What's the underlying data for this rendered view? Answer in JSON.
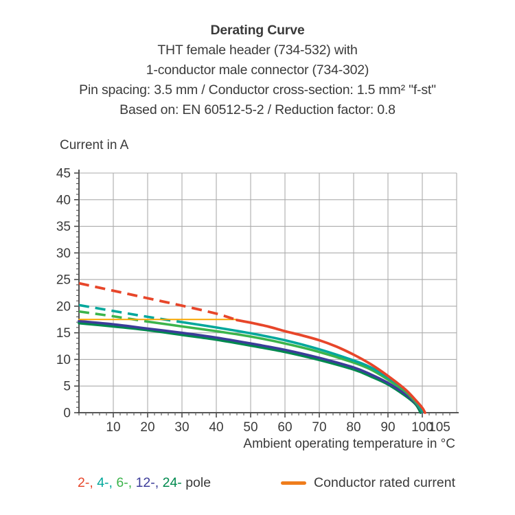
{
  "title_block": {
    "line1": "Derating Curve",
    "line2": "THT female header (734-532) with",
    "line3": "1-conductor male connector (734-302)",
    "line4": "Pin spacing: 3.5 mm / Conductor cross-section: 1.5 mm² \"f-st\"",
    "line5": "Based on: EN 60512-5-2 / Reduction factor: 0.8"
  },
  "chart_data": {
    "type": "line",
    "title": "Derating Curve",
    "ylabel": "Current in A",
    "xlabel": "Ambient operating temperature in °C",
    "xlim": [
      0,
      110
    ],
    "ylim": [
      0,
      45
    ],
    "x_major_ticks": [
      10,
      20,
      30,
      40,
      50,
      60,
      70,
      80,
      90,
      100,
      105
    ],
    "y_major_ticks": [
      0,
      5,
      10,
      15,
      20,
      25,
      30,
      35,
      40,
      45
    ],
    "x_minor_step": 2,
    "y_minor_step": 1,
    "grid": true,
    "grid_x_step": 10,
    "grid_y_step": 5,
    "colors": {
      "grid": "#ababab",
      "axis": "#3f3f3f",
      "text": "#3a3a3a"
    },
    "series": [
      {
        "name": "24-pole",
        "color": "#00894E",
        "style": "solid",
        "width": 3.6,
        "points": [
          [
            0,
            16.8
          ],
          [
            10,
            16.2
          ],
          [
            20,
            15.5
          ],
          [
            30,
            14.6
          ],
          [
            40,
            13.7
          ],
          [
            50,
            12.6
          ],
          [
            60,
            11.4
          ],
          [
            70,
            9.9
          ],
          [
            80,
            8.1
          ],
          [
            85,
            6.8
          ],
          [
            90,
            5.3
          ],
          [
            95,
            3.2
          ],
          [
            98,
            1.6
          ],
          [
            99.5,
            0
          ]
        ]
      },
      {
        "name": "12-pole",
        "color": "#3C3C99",
        "style": "solid",
        "width": 3.6,
        "points": [
          [
            0,
            17.2
          ],
          [
            10,
            16.6
          ],
          [
            20,
            15.8
          ],
          [
            30,
            15.0
          ],
          [
            40,
            14.1
          ],
          [
            50,
            13.0
          ],
          [
            60,
            11.8
          ],
          [
            70,
            10.3
          ],
          [
            80,
            8.5
          ],
          [
            85,
            7.2
          ],
          [
            90,
            5.6
          ],
          [
            95,
            3.5
          ],
          [
            98,
            1.8
          ],
          [
            100,
            0.1
          ]
        ]
      },
      {
        "name": "6-pole",
        "color": "#3CB44B",
        "style": "solid",
        "width": 3.6,
        "points": [
          [
            20,
            17.1
          ],
          [
            30,
            16.2
          ],
          [
            40,
            15.3
          ],
          [
            50,
            14.3
          ],
          [
            60,
            13.0
          ],
          [
            70,
            11.4
          ],
          [
            80,
            9.4
          ],
          [
            85,
            8.1
          ],
          [
            90,
            6.2
          ],
          [
            95,
            4.0
          ],
          [
            98,
            2.0
          ],
          [
            100,
            0.2
          ]
        ]
      },
      {
        "name": "6-pole above conductor rating",
        "color": "#3CB44B",
        "style": "dashed",
        "width": 3.6,
        "points": [
          [
            0,
            19.0
          ],
          [
            10,
            18.1
          ],
          [
            20,
            17.1
          ]
        ]
      },
      {
        "name": "4-pole",
        "color": "#00A79B",
        "style": "solid",
        "width": 3.6,
        "points": [
          [
            31,
            16.9
          ],
          [
            40,
            16.0
          ],
          [
            50,
            14.9
          ],
          [
            60,
            13.6
          ],
          [
            70,
            11.9
          ],
          [
            80,
            9.8
          ],
          [
            85,
            8.5
          ],
          [
            90,
            6.6
          ],
          [
            95,
            4.3
          ],
          [
            98,
            2.3
          ],
          [
            100,
            0.3
          ]
        ]
      },
      {
        "name": "4-pole above conductor rating",
        "color": "#00A79B",
        "style": "dashed",
        "width": 3.6,
        "points": [
          [
            0,
            20.2
          ],
          [
            10,
            19.1
          ],
          [
            20,
            18.0
          ],
          [
            31,
            16.9
          ]
        ]
      },
      {
        "name": "Conductor rated current",
        "color": "#F7A600",
        "style": "solid",
        "width": 2,
        "points": [
          [
            0,
            17.5
          ],
          [
            46,
            17.5
          ]
        ]
      },
      {
        "name": "2-pole",
        "color": "#E7462A",
        "style": "solid",
        "width": 3.8,
        "points": [
          [
            46,
            17.4
          ],
          [
            50,
            16.9
          ],
          [
            55,
            16.2
          ],
          [
            60,
            15.3
          ],
          [
            65,
            14.5
          ],
          [
            70,
            13.6
          ],
          [
            75,
            12.4
          ],
          [
            80,
            10.9
          ],
          [
            85,
            9.1
          ],
          [
            90,
            6.9
          ],
          [
            95,
            4.4
          ],
          [
            98,
            2.4
          ],
          [
            100,
            0.9
          ],
          [
            100.8,
            0
          ]
        ]
      },
      {
        "name": "2-pole above conductor rating",
        "color": "#E7462A",
        "style": "dashed",
        "width": 3.8,
        "points": [
          [
            0,
            24.3
          ],
          [
            10,
            22.9
          ],
          [
            20,
            21.5
          ],
          [
            30,
            20.1
          ],
          [
            40,
            18.6
          ],
          [
            46,
            17.4
          ]
        ]
      }
    ]
  },
  "legend": {
    "pole_items": [
      {
        "label": "2-,",
        "color": "#E7462A"
      },
      {
        "label": "4-,",
        "color": "#00A79B"
      },
      {
        "label": "6-,",
        "color": "#3CB44B"
      },
      {
        "label": "12-,",
        "color": "#3C3C99"
      },
      {
        "label": "24-",
        "color": "#00894E"
      }
    ],
    "pole_suffix": " pole",
    "conductor_label": "Conductor rated current",
    "conductor_color": "#EF7D1C"
  }
}
